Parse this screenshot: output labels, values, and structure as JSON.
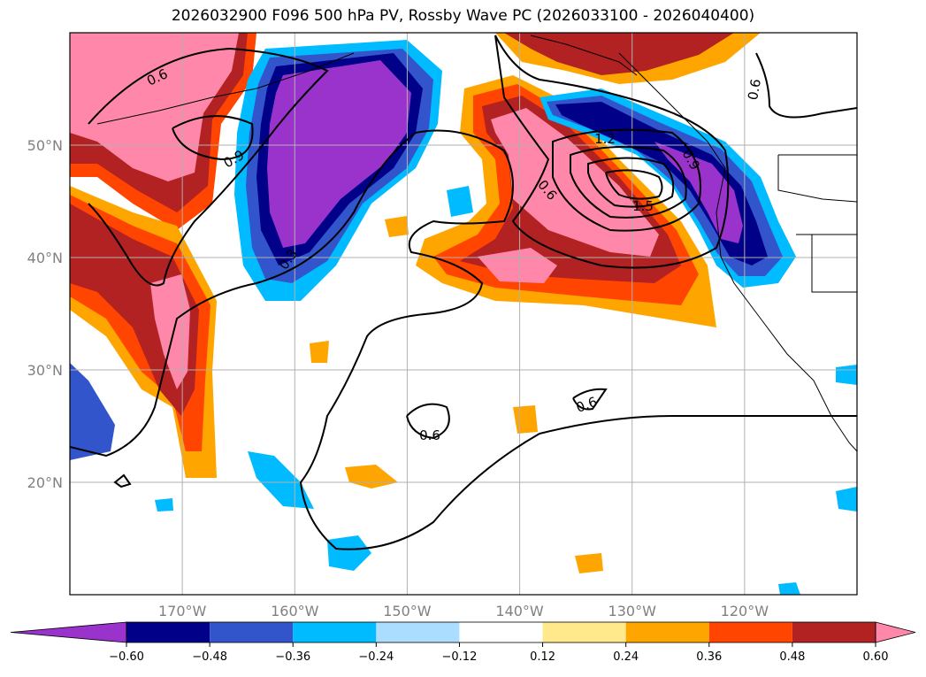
{
  "title": "2026032900 F096 500 hPa PV, Rossby Wave PC (2026033100 - 2026040400)",
  "map": {
    "lon_range": [
      -180,
      -110
    ],
    "lat_range": [
      10,
      60
    ],
    "lat_ticks": [
      {
        "value": 20,
        "label": "20°N"
      },
      {
        "value": 30,
        "label": "30°N"
      },
      {
        "value": 40,
        "label": "40°N"
      },
      {
        "value": 50,
        "label": "50°N"
      }
    ],
    "lon_ticks": [
      {
        "value": -170,
        "label": "170°W"
      },
      {
        "value": -160,
        "label": "160°W"
      },
      {
        "value": -150,
        "label": "150°W"
      },
      {
        "value": -140,
        "label": "140°W"
      },
      {
        "value": -130,
        "label": "130°W"
      },
      {
        "value": -120,
        "label": "120°W"
      }
    ],
    "gridlines": true,
    "contour_labels": [
      "0.6",
      "0.9",
      "0.3",
      "0.6",
      "1.2",
      "1.5",
      "0.9",
      "0.6",
      "0.6",
      "0.6"
    ]
  },
  "colorbar": {
    "levels": [
      "−0.60",
      "−0.48",
      "−0.36",
      "−0.24",
      "−0.12",
      "0.12",
      "0.24",
      "0.36",
      "0.48",
      "0.60"
    ],
    "colors": [
      "#9933cc",
      "#000088",
      "#3355cc",
      "#00bbff",
      "#aaddff",
      "#ffffff",
      "#ffe98a",
      "#ffa500",
      "#ff4500",
      "#b22222",
      "#ff88aa"
    ],
    "extend": "both"
  }
}
